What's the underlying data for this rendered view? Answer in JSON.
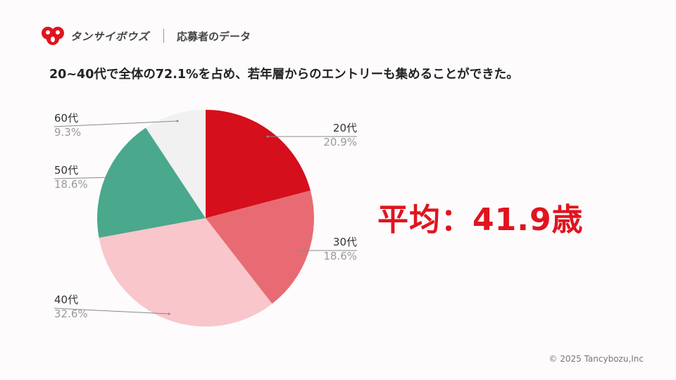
{
  "header": {
    "brand": "タンサイボウズ",
    "section": "応募者のデータ"
  },
  "headline": "20~40代で全体の72.1%を占め、若年層からのエントリーも集めることができた。",
  "average": {
    "text": "平均：41.9歳"
  },
  "footer": {
    "copyright": "© 2025  Tancybozu,Inc"
  },
  "colors": {
    "accent": "#e0141e"
  },
  "chart_data": {
    "type": "pie",
    "start_angle_deg": 0,
    "direction": "clockwise",
    "slices": [
      {
        "label": "20代",
        "percent_text": "20.9%",
        "value": 20.9,
        "color": "#d50f1b"
      },
      {
        "label": "30代",
        "percent_text": "18.6%",
        "value": 18.6,
        "color": "#e86b73"
      },
      {
        "label": "40代",
        "percent_text": "32.6%",
        "value": 32.6,
        "color": "#f8c6cb"
      },
      {
        "label": "50代",
        "percent_text": "18.6%",
        "value": 18.6,
        "color": "#4aa88c"
      },
      {
        "label": "60代",
        "percent_text": "9.3%",
        "value": 9.3,
        "color": "#f1f1f1"
      }
    ]
  }
}
